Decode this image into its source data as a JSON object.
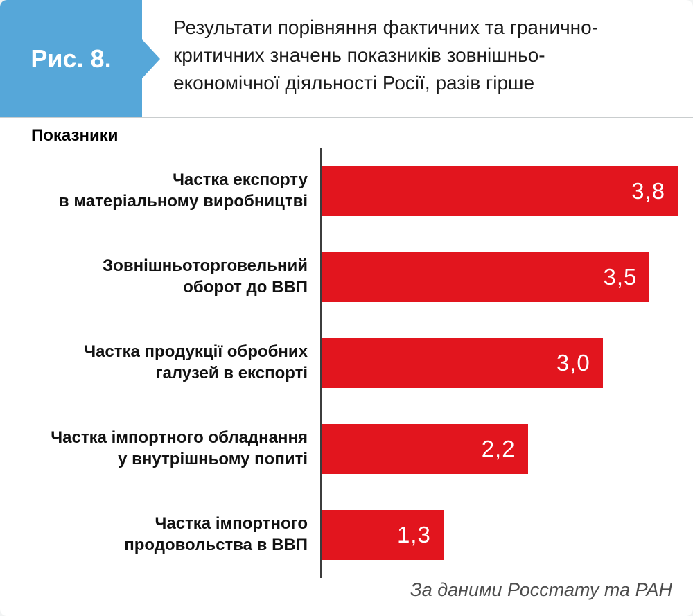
{
  "header": {
    "figure_label": "Рис. 8.",
    "title": "Результати порівняння фактичних та гранично-критичних значень показників зовнішньоекономічної діяльності Росії, разів гірше",
    "title_lines": [
      "Результати порівняння фактичних та гранично-",
      "критичних значень показників зовнішньо-",
      "економічної діяльності Росії, разів гірше"
    ]
  },
  "chart_header": "Показники",
  "source_note": "За даними Росстату та РАН",
  "colors": {
    "bar": "#e2151e",
    "badge": "#56a7d9",
    "axis": "#3c3c3c",
    "value_text": "#ffffff"
  },
  "chart_data": {
    "type": "bar",
    "orientation": "horizontal",
    "title": "Результати порівняння фактичних та гранично-критичних значень показників зовнішньоекономічної діяльності Росії, разів гірше",
    "categories": [
      "Частка експорту в матеріальному виробництві",
      "Зовнішньоторговельний оборот до ВВП",
      "Частка продукції обробних галузей в експорті",
      "Частка імпортного обладнання у внутрішньому попиті",
      "Частка імпортного продовольства в ВВП"
    ],
    "category_lines": [
      [
        "Частка експорту",
        "в матеріальному виробництві"
      ],
      [
        "Зовнішньоторговельний",
        "оборот до ВВП"
      ],
      [
        "Частка продукції обробних",
        "галузей в експорті"
      ],
      [
        "Частка імпортного обладнання",
        "у внутрішньому попиті"
      ],
      [
        "Частка імпортного",
        "продовольства в ВВП"
      ]
    ],
    "values": [
      3.8,
      3.5,
      3.0,
      2.2,
      1.3
    ],
    "value_labels": [
      "3,8",
      "3,5",
      "3,0",
      "2,2",
      "1,3"
    ],
    "xlim": [
      0,
      3.8
    ],
    "xlabel": "",
    "ylabel": "Показники",
    "grid": false,
    "legend": false,
    "source": "За даними Росстату та РАН"
  }
}
